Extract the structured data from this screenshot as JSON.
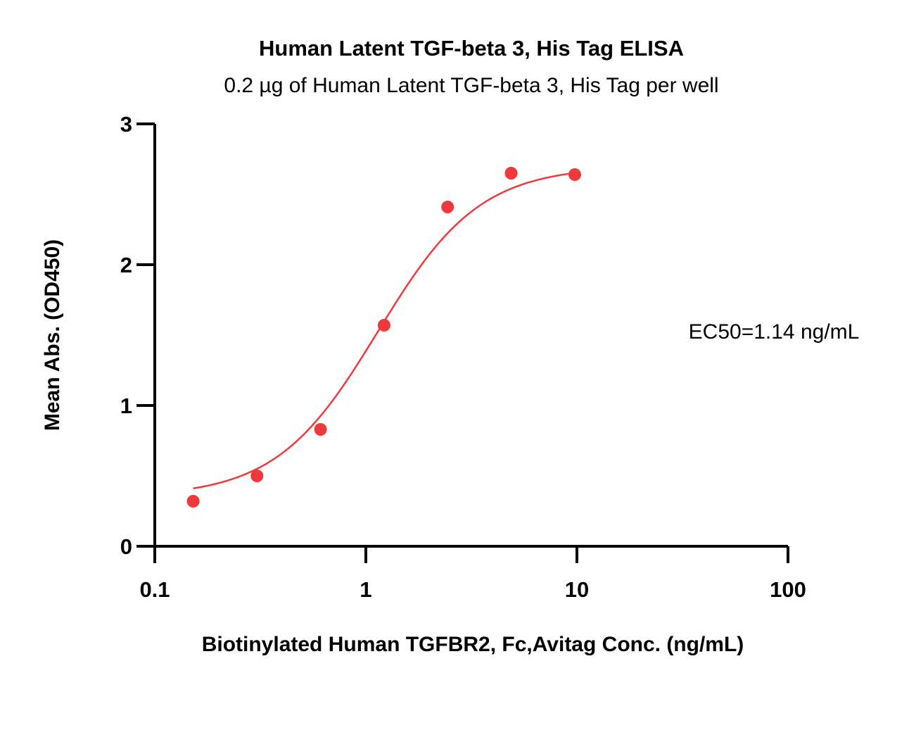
{
  "chart_data": {
    "type": "scatter",
    "title": "Human Latent TGF-beta 3, His Tag ELISA",
    "subtitle": "0.2 µg of Human Latent TGF-beta 3, His Tag per well",
    "xlabel": "Biotinylated Human TGFBR2, Fc,Avitag Conc. (ng/mL)",
    "ylabel": "Mean Abs. (OD450)",
    "x_scale": "log",
    "xlim": [
      0.1,
      100
    ],
    "ylim": [
      0,
      3
    ],
    "x_ticks": [
      "0.1",
      "1",
      "10",
      "100"
    ],
    "y_ticks": [
      "0",
      "1",
      "2",
      "3"
    ],
    "grid": false,
    "series": [
      {
        "x": [
          0.152,
          0.305,
          0.61,
          1.22,
          2.44,
          4.88,
          9.77
        ],
        "y": [
          0.32,
          0.5,
          0.83,
          1.57,
          2.41,
          2.65,
          2.64
        ],
        "color": "#f0393c"
      }
    ],
    "fit_curve": {
      "type": "4PL",
      "bottom": 0.35,
      "top": 2.7,
      "ec50": 1.14,
      "hill": 1.8,
      "color": "#f0393c"
    },
    "annotation": "EC50=1.14 ng/mL"
  }
}
